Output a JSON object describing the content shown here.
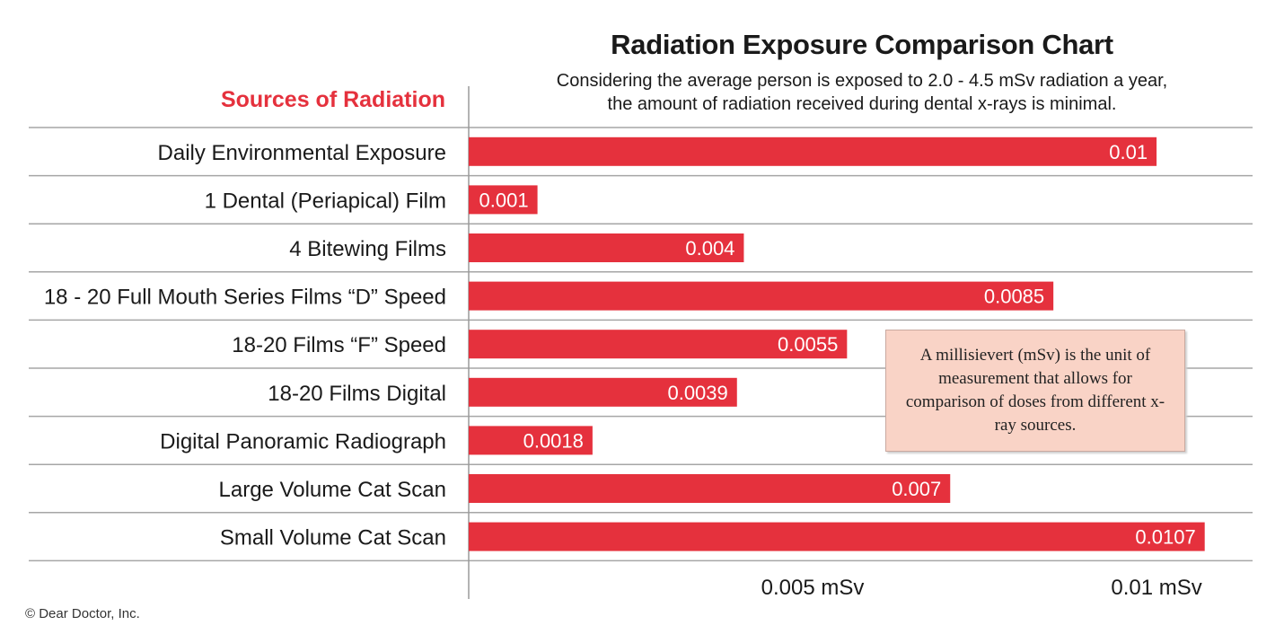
{
  "chart_data": {
    "type": "bar",
    "orientation": "horizontal",
    "title": "Radiation Exposure Comparison Chart",
    "subtitle_lines": [
      "Considering the average person is exposed to 2.0 - 4.5 mSv radiation a year,",
      "the amount of radiation received during dental x-rays is minimal."
    ],
    "category_header": "Sources of Radiation",
    "categories": [
      "Daily Environmental Exposure",
      "1 Dental (Periapical) Film",
      "4 Bitewing Films",
      "18 - 20 Full Mouth Series Films “D” Speed",
      "18-20 Films “F” Speed",
      "18-20 Films Digital",
      "Digital Panoramic Radiograph",
      "Large Volume Cat Scan",
      "Small Volume Cat Scan"
    ],
    "values": [
      0.01,
      0.001,
      0.004,
      0.0085,
      0.0055,
      0.0039,
      0.0018,
      0.007,
      0.0107
    ],
    "value_labels": [
      "0.01",
      "0.001",
      "0.004",
      "0.0085",
      "0.0055",
      "0.0039",
      "0.0018",
      "0.007",
      "0.0107"
    ],
    "xlim": [
      0,
      0.0112
    ],
    "x_ticks": [
      {
        "value": 0.005,
        "label": "0.005 mSv"
      },
      {
        "value": 0.01,
        "label": "0.01 mSv"
      }
    ],
    "xlabel": "",
    "ylabel": "",
    "bar_color": "#e5313d",
    "grid": false,
    "note": "A millisievert (mSv) is the unit of measurement that allows for comparison of doses from different x-ray sources."
  },
  "footer": {
    "copyright": "© Dear Doctor, Inc."
  },
  "colors": {
    "accent": "#e5313d",
    "note_background": "#f9d3c6",
    "rule": "#a6a6a6"
  }
}
